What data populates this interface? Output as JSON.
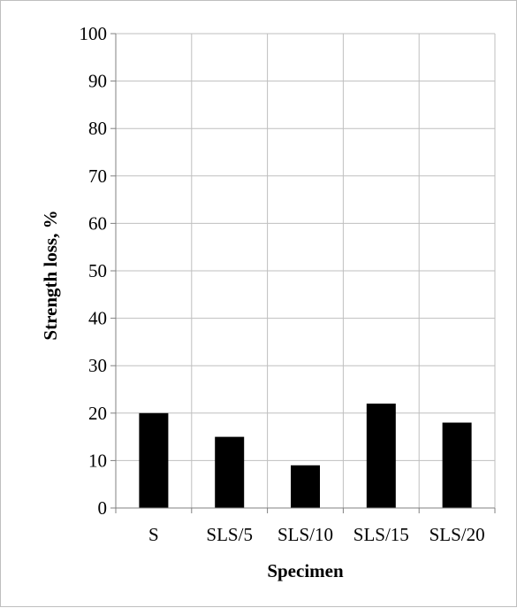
{
  "chart_data": {
    "type": "bar",
    "title": "",
    "xlabel": "Specimen",
    "ylabel": "Strength loss, %",
    "categories": [
      "S",
      "SLS/5",
      "SLS/10",
      "SLS/15",
      "SLS/20"
    ],
    "values": [
      20,
      15,
      9,
      22,
      18
    ],
    "ylim": [
      0,
      100
    ],
    "yticks": [
      "0",
      "10",
      "20",
      "30",
      "40",
      "50",
      "60",
      "70",
      "80",
      "90",
      "100"
    ],
    "grid": "vertical and horizontal",
    "legend": "none",
    "colors": {
      "bar": "#000000",
      "grid": "#bfbfbf",
      "axis": "#808080"
    }
  }
}
